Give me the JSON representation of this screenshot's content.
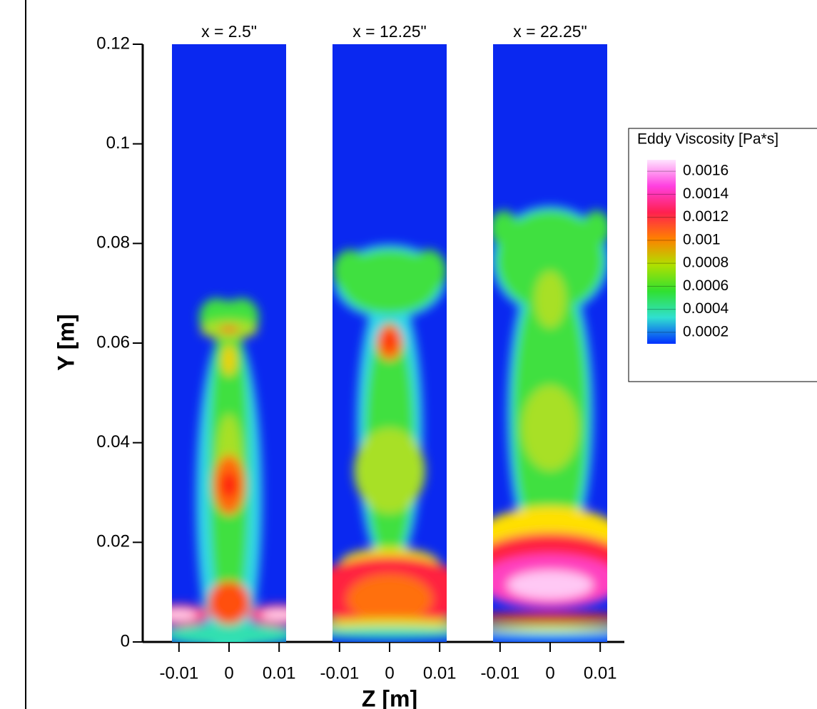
{
  "chart_data": {
    "type": "contour",
    "y_label": "Y [m]",
    "x_label": "Z [m]",
    "ylim": [
      0,
      0.12
    ],
    "yticks": [
      0,
      0.02,
      0.04,
      0.06,
      0.08,
      0.1,
      0.12
    ],
    "xlim": [
      -0.0114,
      0.0114
    ],
    "xticks": [
      -0.01,
      0,
      0.01
    ],
    "panels": [
      {
        "title": "x = 2.5\""
      },
      {
        "title": "x = 12.25\""
      },
      {
        "title": "x = 22.25\""
      }
    ],
    "colorbar": {
      "title": "Eddy Viscosity [Pa*s]",
      "levels": [
        0.0016,
        0.0014,
        0.0012,
        0.001,
        0.0008,
        0.0006,
        0.0004,
        0.0002
      ],
      "colors": [
        "#ffe4ff",
        "#ff40e0",
        "#ff2050",
        "#ff8000",
        "#b0e000",
        "#30e030",
        "#30e0d0",
        "#0030ff"
      ]
    }
  }
}
